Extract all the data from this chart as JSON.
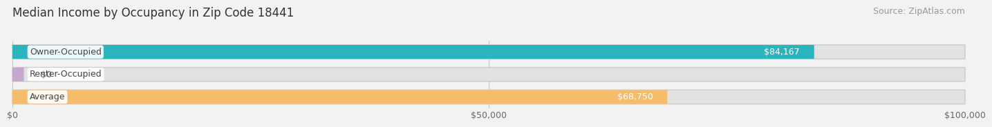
{
  "title": "Median Income by Occupancy in Zip Code 18441",
  "source": "Source: ZipAtlas.com",
  "categories": [
    "Owner-Occupied",
    "Renter-Occupied",
    "Average"
  ],
  "values": [
    84167,
    0,
    68750
  ],
  "bar_colors": [
    "#2ab5bc",
    "#c4a8d0",
    "#f5bc6a"
  ],
  "bar_labels": [
    "$84,167",
    "$0",
    "$68,750"
  ],
  "xlim": [
    0,
    100000
  ],
  "xticks": [
    0,
    50000,
    100000
  ],
  "xtick_labels": [
    "$0",
    "$50,000",
    "$100,000"
  ],
  "background_color": "#f2f2f2",
  "bar_bg_color": "#e2e2e2",
  "title_fontsize": 12,
  "source_fontsize": 9,
  "label_fontsize": 9,
  "value_fontsize": 9,
  "bar_height": 0.62,
  "bar_label_color_inside": "#ffffff",
  "bar_label_color_outside": "#666666",
  "cat_label_color": "#444444"
}
